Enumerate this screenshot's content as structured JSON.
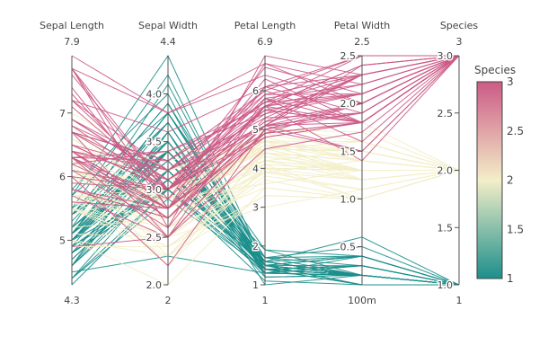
{
  "chart_data": {
    "type": "parcoords",
    "title": "",
    "colorscale": [
      "#1c8f8b",
      "#f3eec8",
      "#cc5a86"
    ],
    "dimensions": [
      {
        "label": "Sepal Length",
        "range": [
          4.3,
          7.9
        ],
        "range_labels": [
          "4.3",
          "7.9"
        ],
        "ticks": [
          {
            "v": 5,
            "t": "5"
          },
          {
            "v": 6,
            "t": "6"
          },
          {
            "v": 7,
            "t": "7"
          }
        ]
      },
      {
        "label": "Sepal Width",
        "range": [
          2.0,
          4.4
        ],
        "range_labels": [
          "2",
          "4.4"
        ],
        "ticks": [
          {
            "v": 2.0,
            "t": "2.0"
          },
          {
            "v": 2.5,
            "t": "2.5"
          },
          {
            "v": 3.0,
            "t": "3.0"
          },
          {
            "v": 3.5,
            "t": "3.5"
          },
          {
            "v": 4.0,
            "t": "4.0"
          }
        ]
      },
      {
        "label": "Petal Length",
        "range": [
          1,
          6.9
        ],
        "range_labels": [
          "1",
          "6.9"
        ],
        "ticks": [
          {
            "v": 1,
            "t": "1"
          },
          {
            "v": 2,
            "t": "2"
          },
          {
            "v": 3,
            "t": "3"
          },
          {
            "v": 4,
            "t": "4"
          },
          {
            "v": 5,
            "t": "5"
          },
          {
            "v": 6,
            "t": "6"
          }
        ]
      },
      {
        "label": "Petal Width",
        "range": [
          0.1,
          2.5
        ],
        "range_labels": [
          "100m",
          "2.5"
        ],
        "ticks": [
          {
            "v": 0.5,
            "t": "0.5"
          },
          {
            "v": 1.0,
            "t": "1.0"
          },
          {
            "v": 1.5,
            "t": "1.5"
          },
          {
            "v": 2.0,
            "t": "2.0"
          },
          {
            "v": 2.5,
            "t": "2.5"
          }
        ]
      },
      {
        "label": "Species",
        "range": [
          1,
          3
        ],
        "range_labels": [
          "1",
          "3"
        ],
        "ticks": [
          {
            "v": 1.0,
            "t": "1.0"
          },
          {
            "v": 1.5,
            "t": "1.5"
          },
          {
            "v": 2.0,
            "t": "2.0"
          },
          {
            "v": 2.5,
            "t": "2.5"
          },
          {
            "v": 3.0,
            "t": "3.0"
          }
        ]
      }
    ],
    "colorbar": {
      "title": "Species",
      "range": [
        1,
        3
      ],
      "ticks": [
        {
          "v": 1,
          "t": "1"
        },
        {
          "v": 1.5,
          "t": "1.5"
        },
        {
          "v": 2,
          "t": "2"
        },
        {
          "v": 2.5,
          "t": "2.5"
        },
        {
          "v": 3,
          "t": "3"
        }
      ]
    },
    "rows": [
      [
        5.1,
        3.5,
        1.4,
        0.2,
        1
      ],
      [
        4.9,
        3.0,
        1.4,
        0.2,
        1
      ],
      [
        4.7,
        3.2,
        1.3,
        0.2,
        1
      ],
      [
        4.6,
        3.1,
        1.5,
        0.2,
        1
      ],
      [
        5.0,
        3.6,
        1.4,
        0.2,
        1
      ],
      [
        5.4,
        3.9,
        1.7,
        0.4,
        1
      ],
      [
        4.6,
        3.4,
        1.4,
        0.3,
        1
      ],
      [
        5.0,
        3.4,
        1.5,
        0.2,
        1
      ],
      [
        4.4,
        2.9,
        1.4,
        0.2,
        1
      ],
      [
        4.9,
        3.1,
        1.5,
        0.1,
        1
      ],
      [
        5.4,
        3.7,
        1.5,
        0.2,
        1
      ],
      [
        4.8,
        3.4,
        1.6,
        0.2,
        1
      ],
      [
        4.8,
        3.0,
        1.4,
        0.1,
        1
      ],
      [
        4.3,
        3.0,
        1.1,
        0.1,
        1
      ],
      [
        5.8,
        4.0,
        1.2,
        0.2,
        1
      ],
      [
        5.7,
        4.4,
        1.5,
        0.4,
        1
      ],
      [
        5.4,
        3.9,
        1.3,
        0.4,
        1
      ],
      [
        5.1,
        3.5,
        1.4,
        0.3,
        1
      ],
      [
        5.7,
        3.8,
        1.7,
        0.3,
        1
      ],
      [
        5.1,
        3.8,
        1.5,
        0.3,
        1
      ],
      [
        5.4,
        3.4,
        1.7,
        0.2,
        1
      ],
      [
        5.1,
        3.7,
        1.5,
        0.4,
        1
      ],
      [
        4.6,
        3.6,
        1.0,
        0.2,
        1
      ],
      [
        5.1,
        3.3,
        1.7,
        0.5,
        1
      ],
      [
        4.8,
        3.4,
        1.9,
        0.2,
        1
      ],
      [
        5.0,
        3.0,
        1.6,
        0.2,
        1
      ],
      [
        5.0,
        3.4,
        1.6,
        0.4,
        1
      ],
      [
        5.2,
        3.5,
        1.5,
        0.2,
        1
      ],
      [
        5.2,
        3.4,
        1.4,
        0.2,
        1
      ],
      [
        4.7,
        3.2,
        1.6,
        0.2,
        1
      ],
      [
        4.8,
        3.1,
        1.6,
        0.2,
        1
      ],
      [
        5.4,
        3.4,
        1.5,
        0.4,
        1
      ],
      [
        5.2,
        4.1,
        1.5,
        0.1,
        1
      ],
      [
        5.5,
        4.2,
        1.4,
        0.2,
        1
      ],
      [
        4.9,
        3.1,
        1.5,
        0.2,
        1
      ],
      [
        5.0,
        3.2,
        1.2,
        0.2,
        1
      ],
      [
        5.5,
        3.5,
        1.3,
        0.2,
        1
      ],
      [
        4.9,
        3.6,
        1.4,
        0.1,
        1
      ],
      [
        4.4,
        3.0,
        1.3,
        0.2,
        1
      ],
      [
        5.1,
        3.4,
        1.5,
        0.2,
        1
      ],
      [
        5.0,
        3.5,
        1.3,
        0.3,
        1
      ],
      [
        4.5,
        2.3,
        1.3,
        0.3,
        1
      ],
      [
        4.4,
        3.2,
        1.3,
        0.2,
        1
      ],
      [
        5.0,
        3.5,
        1.6,
        0.6,
        1
      ],
      [
        5.1,
        3.8,
        1.9,
        0.4,
        1
      ],
      [
        4.8,
        3.0,
        1.4,
        0.3,
        1
      ],
      [
        5.1,
        3.8,
        1.6,
        0.2,
        1
      ],
      [
        4.6,
        3.2,
        1.4,
        0.2,
        1
      ],
      [
        5.3,
        3.7,
        1.5,
        0.2,
        1
      ],
      [
        5.0,
        3.3,
        1.4,
        0.2,
        1
      ],
      [
        7.0,
        3.2,
        4.7,
        1.4,
        2
      ],
      [
        6.4,
        3.2,
        4.5,
        1.5,
        2
      ],
      [
        6.9,
        3.1,
        4.9,
        1.5,
        2
      ],
      [
        5.5,
        2.3,
        4.0,
        1.3,
        2
      ],
      [
        6.5,
        2.8,
        4.6,
        1.5,
        2
      ],
      [
        5.7,
        2.8,
        4.5,
        1.3,
        2
      ],
      [
        6.3,
        3.3,
        4.7,
        1.6,
        2
      ],
      [
        4.9,
        2.4,
        3.3,
        1.0,
        2
      ],
      [
        6.6,
        2.9,
        4.6,
        1.3,
        2
      ],
      [
        5.2,
        2.7,
        3.9,
        1.4,
        2
      ],
      [
        5.0,
        2.0,
        3.5,
        1.0,
        2
      ],
      [
        5.9,
        3.0,
        4.2,
        1.5,
        2
      ],
      [
        6.0,
        2.2,
        4.0,
        1.0,
        2
      ],
      [
        6.1,
        2.9,
        4.7,
        1.4,
        2
      ],
      [
        5.6,
        2.9,
        3.6,
        1.3,
        2
      ],
      [
        6.7,
        3.1,
        4.4,
        1.4,
        2
      ],
      [
        5.6,
        3.0,
        4.5,
        1.5,
        2
      ],
      [
        5.8,
        2.7,
        4.1,
        1.0,
        2
      ],
      [
        6.2,
        2.2,
        4.5,
        1.5,
        2
      ],
      [
        5.6,
        2.5,
        3.9,
        1.1,
        2
      ],
      [
        5.9,
        3.2,
        4.8,
        1.8,
        2
      ],
      [
        6.1,
        2.8,
        4.0,
        1.3,
        2
      ],
      [
        6.3,
        2.5,
        4.9,
        1.5,
        2
      ],
      [
        6.1,
        2.8,
        4.7,
        1.2,
        2
      ],
      [
        6.4,
        2.9,
        4.3,
        1.3,
        2
      ],
      [
        6.6,
        3.0,
        4.4,
        1.4,
        2
      ],
      [
        6.8,
        2.8,
        4.8,
        1.4,
        2
      ],
      [
        6.7,
        3.0,
        5.0,
        1.7,
        2
      ],
      [
        6.0,
        2.9,
        4.5,
        1.5,
        2
      ],
      [
        5.7,
        2.6,
        3.5,
        1.0,
        2
      ],
      [
        5.5,
        2.4,
        3.8,
        1.1,
        2
      ],
      [
        5.5,
        2.4,
        3.7,
        1.0,
        2
      ],
      [
        5.8,
        2.7,
        3.9,
        1.2,
        2
      ],
      [
        6.0,
        2.7,
        5.1,
        1.6,
        2
      ],
      [
        5.4,
        3.0,
        4.5,
        1.5,
        2
      ],
      [
        6.0,
        3.4,
        4.5,
        1.6,
        2
      ],
      [
        6.7,
        3.1,
        4.7,
        1.5,
        2
      ],
      [
        6.3,
        2.3,
        4.4,
        1.3,
        2
      ],
      [
        5.6,
        3.0,
        4.1,
        1.3,
        2
      ],
      [
        5.5,
        2.5,
        4.0,
        1.3,
        2
      ],
      [
        5.5,
        2.6,
        4.4,
        1.2,
        2
      ],
      [
        6.1,
        3.0,
        4.6,
        1.4,
        2
      ],
      [
        5.8,
        2.6,
        4.0,
        1.2,
        2
      ],
      [
        5.0,
        2.3,
        3.3,
        1.0,
        2
      ],
      [
        5.6,
        2.7,
        4.2,
        1.3,
        2
      ],
      [
        5.7,
        3.0,
        4.2,
        1.2,
        2
      ],
      [
        5.7,
        2.9,
        4.2,
        1.3,
        2
      ],
      [
        6.2,
        2.9,
        4.3,
        1.3,
        2
      ],
      [
        5.1,
        2.5,
        3.0,
        1.1,
        2
      ],
      [
        5.7,
        2.8,
        4.1,
        1.3,
        2
      ],
      [
        6.3,
        3.3,
        6.0,
        2.5,
        3
      ],
      [
        5.8,
        2.7,
        5.1,
        1.9,
        3
      ],
      [
        7.1,
        3.0,
        5.9,
        2.1,
        3
      ],
      [
        6.3,
        2.9,
        5.6,
        1.8,
        3
      ],
      [
        6.5,
        3.0,
        5.8,
        2.2,
        3
      ],
      [
        7.6,
        3.0,
        6.6,
        2.1,
        3
      ],
      [
        4.9,
        2.5,
        4.5,
        1.7,
        3
      ],
      [
        7.3,
        2.9,
        6.3,
        1.8,
        3
      ],
      [
        6.7,
        2.5,
        5.8,
        1.8,
        3
      ],
      [
        7.2,
        3.6,
        6.1,
        2.5,
        3
      ],
      [
        6.5,
        3.2,
        5.1,
        2.0,
        3
      ],
      [
        6.4,
        2.7,
        5.3,
        1.9,
        3
      ],
      [
        6.8,
        3.0,
        5.5,
        2.1,
        3
      ],
      [
        5.7,
        2.5,
        5.0,
        2.0,
        3
      ],
      [
        5.8,
        2.8,
        5.1,
        2.4,
        3
      ],
      [
        6.4,
        3.2,
        5.3,
        2.3,
        3
      ],
      [
        6.5,
        3.0,
        5.5,
        1.8,
        3
      ],
      [
        7.7,
        3.8,
        6.7,
        2.2,
        3
      ],
      [
        7.7,
        2.6,
        6.9,
        2.3,
        3
      ],
      [
        6.0,
        2.2,
        5.0,
        1.5,
        3
      ],
      [
        6.9,
        3.2,
        5.7,
        2.3,
        3
      ],
      [
        5.6,
        2.8,
        4.9,
        2.0,
        3
      ],
      [
        7.7,
        2.8,
        6.7,
        2.0,
        3
      ],
      [
        6.3,
        2.7,
        4.9,
        1.8,
        3
      ],
      [
        6.7,
        3.3,
        5.7,
        2.1,
        3
      ],
      [
        7.2,
        3.2,
        6.0,
        1.8,
        3
      ],
      [
        6.2,
        2.8,
        4.8,
        1.8,
        3
      ],
      [
        6.1,
        3.0,
        4.9,
        1.8,
        3
      ],
      [
        6.4,
        2.8,
        5.6,
        2.1,
        3
      ],
      [
        7.2,
        3.0,
        5.8,
        1.6,
        3
      ],
      [
        7.4,
        2.8,
        6.1,
        1.9,
        3
      ],
      [
        7.9,
        3.8,
        6.4,
        2.0,
        3
      ],
      [
        6.4,
        2.8,
        5.6,
        2.2,
        3
      ],
      [
        6.3,
        2.8,
        5.1,
        1.5,
        3
      ],
      [
        6.1,
        2.6,
        5.6,
        1.4,
        3
      ],
      [
        7.7,
        3.0,
        6.1,
        2.3,
        3
      ],
      [
        6.3,
        3.4,
        5.6,
        2.4,
        3
      ],
      [
        6.4,
        3.1,
        5.5,
        1.8,
        3
      ],
      [
        6.0,
        3.0,
        4.8,
        1.8,
        3
      ],
      [
        6.9,
        3.1,
        5.4,
        2.1,
        3
      ],
      [
        6.7,
        3.1,
        5.6,
        2.4,
        3
      ],
      [
        6.9,
        3.1,
        5.1,
        2.3,
        3
      ],
      [
        5.8,
        2.7,
        5.1,
        1.9,
        3
      ],
      [
        6.8,
        3.2,
        5.9,
        2.3,
        3
      ],
      [
        6.7,
        3.3,
        5.7,
        2.5,
        3
      ],
      [
        6.7,
        3.0,
        5.2,
        2.3,
        3
      ],
      [
        6.3,
        2.5,
        5.0,
        1.9,
        3
      ],
      [
        6.5,
        3.0,
        5.2,
        2.0,
        3
      ],
      [
        6.2,
        3.4,
        5.4,
        2.3,
        3
      ],
      [
        5.9,
        3.0,
        5.1,
        1.8,
        3
      ]
    ]
  }
}
